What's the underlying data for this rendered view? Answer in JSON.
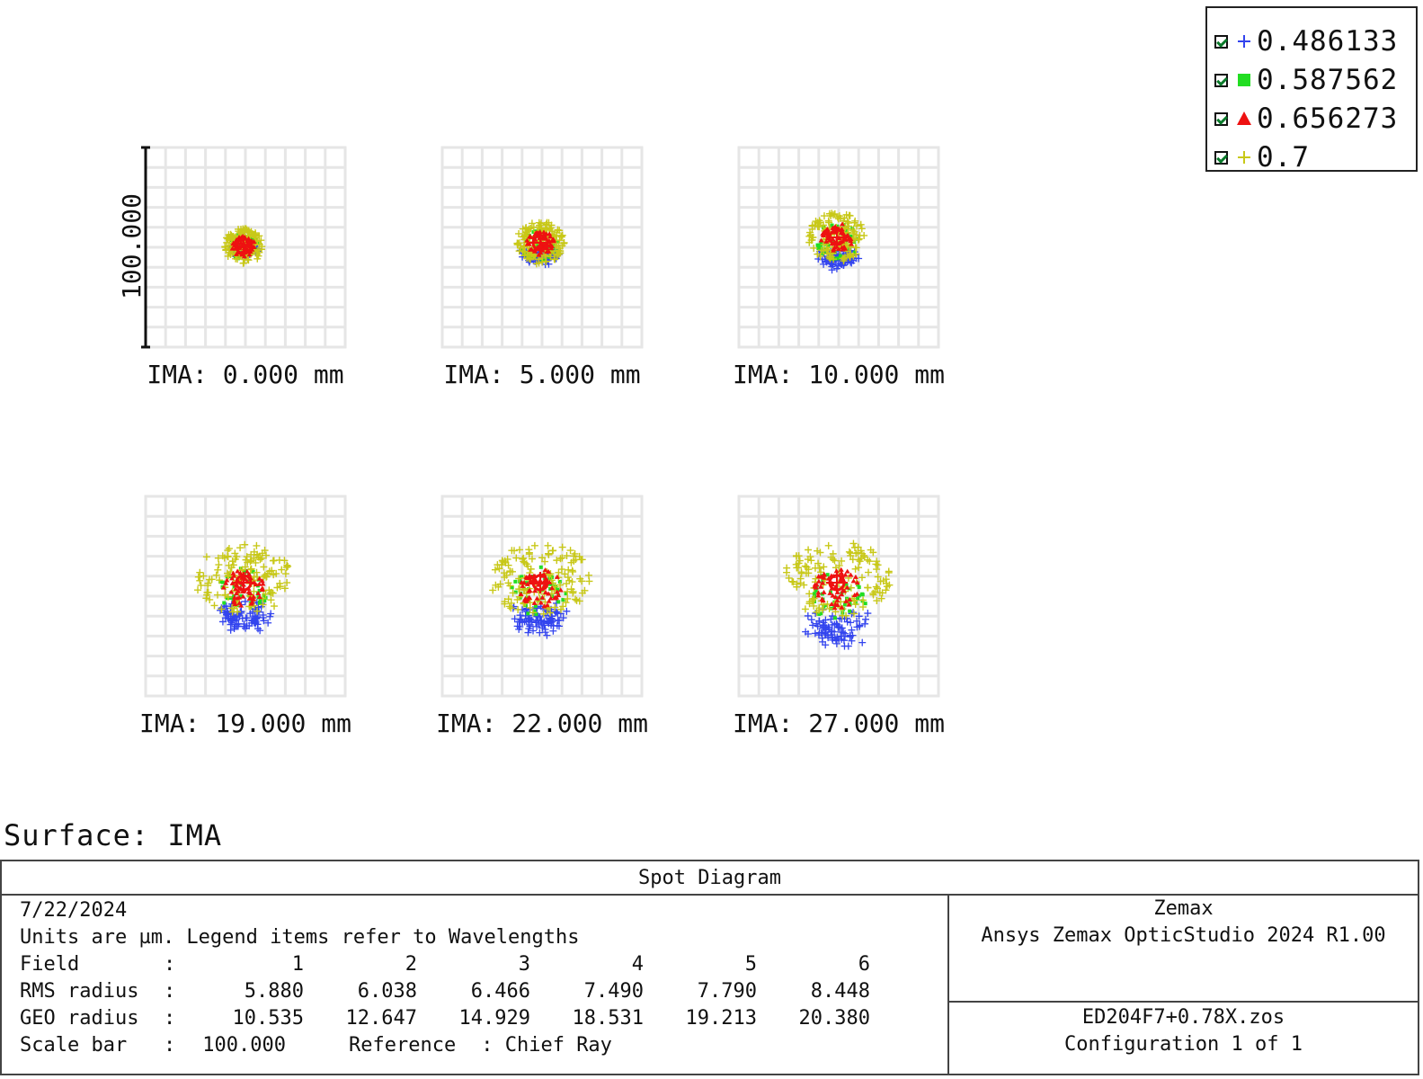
{
  "chart_data": {
    "type": "scatter",
    "title": "Spot Diagram",
    "surface": "Surface: IMA",
    "scale_bar_label": "100.000",
    "scale_bar_um": 100,
    "legend": [
      {
        "label": "0.486133",
        "symbol": "plus",
        "color": "#3344ee"
      },
      {
        "label": "0.587562",
        "symbol": "square",
        "color": "#22dd22"
      },
      {
        "label": "0.656273",
        "symbol": "triangle",
        "color": "#ee1111"
      },
      {
        "label": "0.7",
        "symbol": "plus",
        "color": "#c8c818"
      }
    ],
    "fields": [
      {
        "field": 1,
        "label": "IMA: 0.000 mm",
        "rms_um": 5.88,
        "geo_um": 10.535
      },
      {
        "field": 2,
        "label": "IMA: 5.000 mm",
        "rms_um": 6.038,
        "geo_um": 12.647
      },
      {
        "field": 3,
        "label": "IMA: 10.000 mm",
        "rms_um": 6.466,
        "geo_um": 14.929
      },
      {
        "field": 4,
        "label": "IMA: 19.000 mm",
        "rms_um": 7.49,
        "geo_um": 18.531
      },
      {
        "field": 5,
        "label": "IMA: 22.000 mm",
        "rms_um": 7.79,
        "geo_um": 19.213
      },
      {
        "field": 6,
        "label": "IMA: 27.000 mm",
        "rms_um": 8.448,
        "geo_um": 20.38
      }
    ]
  },
  "info": {
    "title": "Spot Diagram",
    "date": "7/22/2024",
    "units_line": "Units are µm. Legend items refer to Wavelengths",
    "field_label": "Field",
    "field_numbers": [
      "1",
      "2",
      "3",
      "4",
      "5",
      "6"
    ],
    "rms_label": "RMS radius",
    "rms_values": [
      "5.880",
      "6.038",
      "6.466",
      "7.490",
      "7.790",
      "8.448"
    ],
    "geo_label": "GEO radius",
    "geo_values": [
      "10.535",
      "12.647",
      "14.929",
      "18.531",
      "19.213",
      "20.380"
    ],
    "scale_label": "Scale bar",
    "scale_value": "100.000",
    "reference_label": "Reference",
    "reference_value": "Chief Ray",
    "company": "Zemax",
    "product": "Ansys Zemax OpticStudio 2024 R1.00",
    "file": "ED204F7+0.78X.zos",
    "configuration": "Configuration 1 of 1"
  }
}
